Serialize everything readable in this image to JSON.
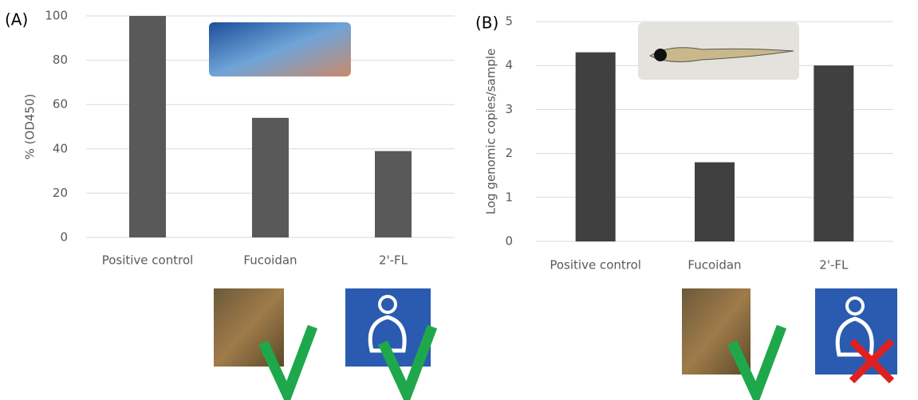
{
  "chart_data": [
    {
      "type": "bar",
      "panel_label": "(A)",
      "y_label": "% (OD450)",
      "categories": [
        "Positive control",
        "Fucoidan",
        "2'-FL"
      ],
      "values": [
        100,
        54,
        39
      ],
      "color": "#595959",
      "ylim": [
        0,
        100
      ],
      "yticks": [
        0,
        20,
        40,
        60,
        80,
        100
      ],
      "grid": true
    },
    {
      "type": "bar",
      "panel_label": "(B)",
      "y_label": "Log genomic copies/sample",
      "categories": [
        "Positive control",
        "Fucoidan",
        "2'-FL"
      ],
      "values": [
        4.3,
        1.8,
        4.0
      ],
      "color": "#404040",
      "ylim": [
        0,
        5
      ],
      "yticks": [
        0,
        1,
        2,
        3,
        4,
        5
      ],
      "grid": true
    }
  ]
}
